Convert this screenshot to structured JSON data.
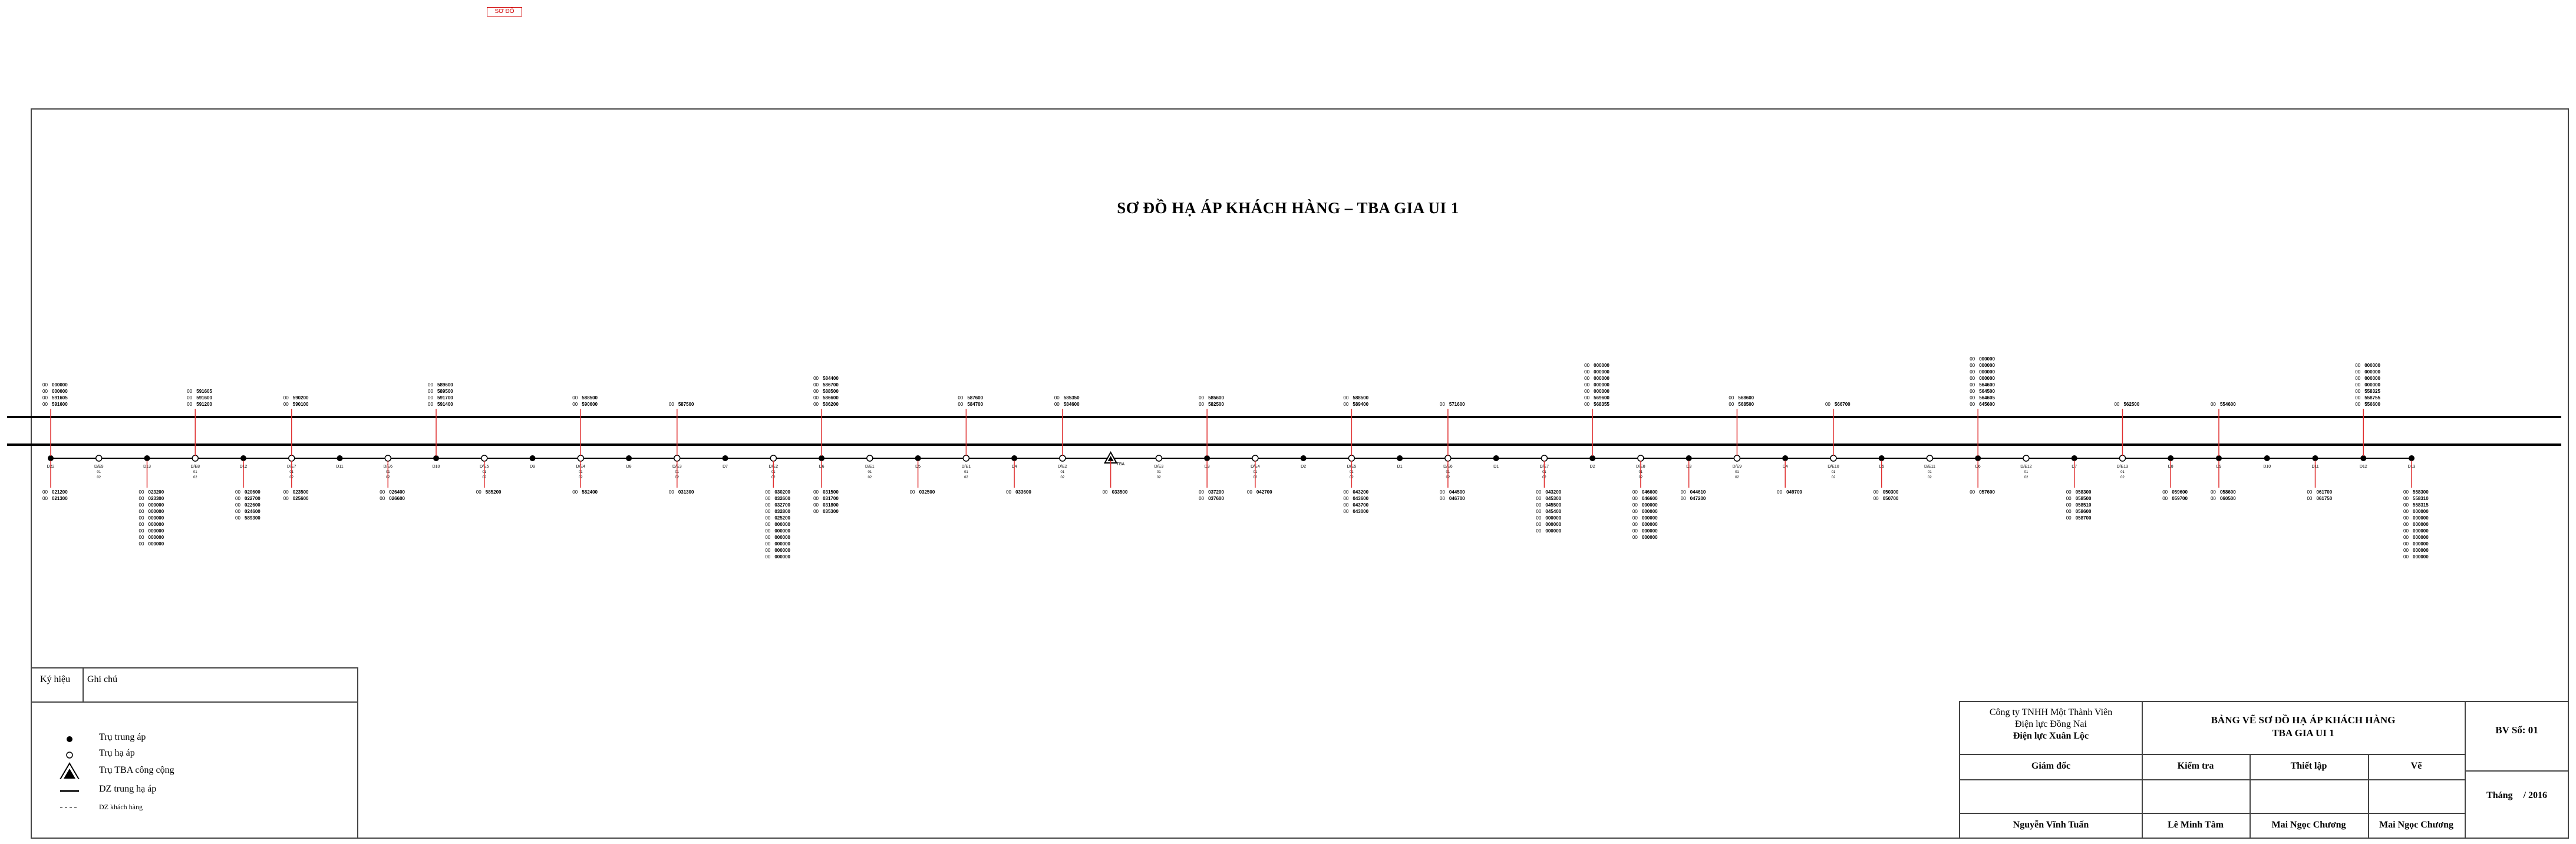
{
  "top_badge": "SƠ ĐỒ",
  "title": "SƠ ĐỒ HẠ ÁP KHÁCH HÀNG – TBA GIA UI 1",
  "diagram": {
    "poles_trung_ap": [
      "D22",
      "D13",
      "D12",
      "D11",
      "D10",
      "D9",
      "D8",
      "D7",
      "D6",
      "D5",
      "D4",
      "D3",
      "D2",
      "D1",
      "D1",
      "D2",
      "D3",
      "D4",
      "D5",
      "D6",
      "D7",
      "D8",
      "D9",
      "D10",
      "D11",
      "D12",
      "D13",
      "D14"
    ],
    "poles_ha_ap": [
      "D/E9",
      "D/E8",
      "D/E7",
      "D/E6",
      "D/E5",
      "D/E4",
      "D/E3",
      "D/E2",
      "D/E1",
      "D/E1",
      "D/E2",
      "D/E3",
      "D/E4",
      "D/E5",
      "D/E6",
      "D/E7",
      "D/E8",
      "D/E9",
      "D/E10",
      "D/E11",
      "D/E12",
      "D/E13"
    ],
    "station_label": "TBA",
    "upper_groups": [
      {
        "label_prefix": "00",
        "codes": [
          "000000",
          "000000",
          "591605",
          "591600"
        ]
      },
      {
        "label_prefix": "00",
        "codes": [
          "591605",
          "591600",
          "591200"
        ]
      },
      {
        "label_prefix": "00",
        "codes": [
          "590200",
          "590100"
        ]
      },
      {
        "label_prefix": "00",
        "codes": [
          "589600",
          "589500",
          "591700",
          "591400"
        ]
      },
      {
        "label_prefix": "00",
        "codes": [
          "588500",
          "590600"
        ]
      },
      {
        "label_prefix": "00",
        "codes": [
          "587500"
        ]
      },
      {
        "label_prefix": "00",
        "codes": [
          "584400",
          "586700",
          "588500",
          "586600",
          "586200"
        ]
      },
      {
        "label_prefix": "00",
        "codes": [
          "587600",
          "584700"
        ]
      },
      {
        "label_prefix": "00",
        "codes": [
          "585350",
          "584600"
        ]
      },
      {
        "label_prefix": "00",
        "codes": [
          "585600",
          "582500"
        ]
      },
      {
        "label_prefix": "00",
        "codes": [
          "588500",
          "589400"
        ]
      },
      {
        "label_prefix": "00",
        "codes": [
          "571600"
        ]
      },
      {
        "label_prefix": "00",
        "codes": [
          "000000",
          "000000",
          "000000",
          "000000",
          "000000",
          "569600",
          "568355"
        ]
      },
      {
        "label_prefix": "00",
        "codes": [
          "568600",
          "568500"
        ]
      },
      {
        "label_prefix": "00",
        "codes": [
          "566700"
        ]
      },
      {
        "label_prefix": "00",
        "codes": [
          "000000",
          "000000",
          "000000",
          "000000",
          "564600",
          "564500",
          "564605",
          "645600"
        ]
      },
      {
        "label_prefix": "00",
        "codes": [
          "562500"
        ]
      },
      {
        "label_prefix": "00",
        "codes": [
          "554600"
        ]
      },
      {
        "label_prefix": "00",
        "codes": [
          "000000",
          "000000",
          "000000",
          "000000",
          "558325",
          "558755",
          "556600"
        ]
      }
    ],
    "lower_groups": [
      {
        "label_prefix": "00",
        "codes": [
          "021200",
          "021300"
        ]
      },
      {
        "label_prefix": "00",
        "codes": [
          "023200",
          "023300",
          "000000",
          "000000",
          "000000",
          "000000",
          "000000",
          "000000",
          "000000"
        ]
      },
      {
        "label_prefix": "00",
        "codes": [
          "020600",
          "022700",
          "022600",
          "024600",
          "589300"
        ]
      },
      {
        "label_prefix": "00",
        "codes": [
          "023500",
          "025600"
        ]
      },
      {
        "label_prefix": "00",
        "codes": [
          "026400",
          "026600"
        ]
      },
      {
        "label_prefix": "00",
        "codes": [
          "585200"
        ]
      },
      {
        "label_prefix": "00",
        "codes": [
          "582400"
        ]
      },
      {
        "label_prefix": "00",
        "codes": [
          "031300"
        ]
      },
      {
        "label_prefix": "00",
        "codes": [
          "030200",
          "032600",
          "032700",
          "032800",
          "025200",
          "000000",
          "000000",
          "000000",
          "000000",
          "000000",
          "000000"
        ]
      },
      {
        "label_prefix": "00",
        "codes": [
          "031500",
          "031700",
          "031800",
          "035300"
        ]
      },
      {
        "label_prefix": "00",
        "codes": [
          "032500"
        ]
      },
      {
        "label_prefix": "00",
        "codes": [
          "033600"
        ]
      },
      {
        "label_prefix": "00",
        "codes": [
          "033500"
        ]
      },
      {
        "label_prefix": "00",
        "codes": [
          "037200",
          "037600"
        ]
      },
      {
        "label_prefix": "00",
        "codes": [
          "042700"
        ]
      },
      {
        "label_prefix": "00",
        "codes": [
          "043200",
          "043600",
          "043700",
          "043000"
        ]
      },
      {
        "label_prefix": "00",
        "codes": [
          "044500",
          "046700"
        ]
      },
      {
        "label_prefix": "00",
        "codes": [
          "043200",
          "045300",
          "045500",
          "045400",
          "000000",
          "000000",
          "000000"
        ]
      },
      {
        "label_prefix": "00",
        "codes": [
          "046600",
          "046600",
          "000000",
          "000000",
          "000000",
          "000000",
          "000000",
          "000000"
        ]
      },
      {
        "label_prefix": "00",
        "codes": [
          "044610",
          "047200"
        ]
      },
      {
        "label_prefix": "00",
        "codes": [
          "049700"
        ]
      },
      {
        "label_prefix": "00",
        "codes": [
          "050300",
          "050700"
        ]
      },
      {
        "label_prefix": "00",
        "codes": [
          "057600"
        ]
      },
      {
        "label_prefix": "00",
        "codes": [
          "058300",
          "058500",
          "058510",
          "058600",
          "058700"
        ]
      },
      {
        "label_prefix": "00",
        "codes": [
          "059600",
          "059700"
        ]
      },
      {
        "label_prefix": "00",
        "codes": [
          "058600",
          "060500"
        ]
      },
      {
        "label_prefix": "00",
        "codes": [
          "061700",
          "061750"
        ]
      },
      {
        "label_prefix": "00",
        "codes": [
          "558300",
          "558310",
          "558315",
          "000000",
          "000000",
          "000000",
          "000000",
          "000000",
          "000000",
          "000000",
          "000000"
        ]
      }
    ]
  },
  "legend": {
    "col_symbol": "Ký hiệu",
    "col_note": "Ghi chú",
    "items": [
      {
        "icon": "filled-dot-icon",
        "label": "Trụ trung áp"
      },
      {
        "icon": "hollow-dot-icon",
        "label": "Trụ hạ áp"
      },
      {
        "icon": "transformer-triangle-icon",
        "label": "Trụ TBA công cộng"
      },
      {
        "icon": "thick-line-icon",
        "label": "DZ trung hạ áp"
      },
      {
        "icon": "dashed-line-icon",
        "label": "DZ khách hàng"
      }
    ]
  },
  "title_block": {
    "company_line1": "Công ty TNHH Một Thành Viên",
    "company_line2": "Điện lực Đồng Nai",
    "company_line3": "Điện lực Xuân Lộc",
    "drawing_title_line1": "BẢNG VẼ SƠ ĐỒ HẠ ÁP KHÁCH HÀNG",
    "drawing_title_line2": "TBA GIA UI 1",
    "sheet_no": "BV Số: 01",
    "role_director": "Giám đốc",
    "role_check": "Kiểm tra",
    "role_design": "Thiết lập",
    "role_draw": "Vẽ",
    "name_director": "Nguyễn Vĩnh Tuấn",
    "name_check": "Lê Minh Tâm",
    "name_design": "Mai Ngọc Chương",
    "name_draw": "Mai Ngọc Chương",
    "month_label": "Tháng",
    "year": "/ 2016"
  },
  "colors": {
    "frame": "#444444",
    "line": "#000000",
    "customer_line": "#e03030",
    "badge": "#d00000"
  }
}
